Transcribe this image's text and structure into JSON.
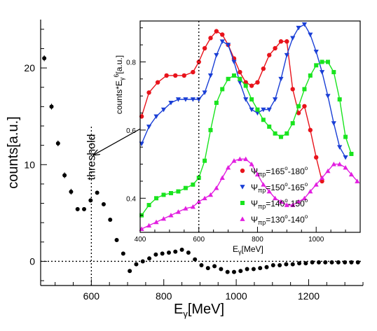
{
  "chart_data": [
    {
      "type": "scatter",
      "xlabel_main": "E",
      "xlabel_sub": "γ",
      "xlabel_unit": "[MeV]",
      "ylabel": "counts[a.u.]",
      "xlim": [
        460,
        1350
      ],
      "ylim": [
        -2.5,
        25
      ],
      "xticks": [
        600,
        800,
        1000,
        1200
      ],
      "yticks": [
        0,
        10,
        20
      ],
      "x_tick_labels": [
        "600",
        "800",
        "1000",
        "1200"
      ],
      "y_tick_labels": [
        "0",
        "10",
        "20"
      ],
      "threshold_x": 600,
      "threshold_label": "threshold",
      "zero_line": 0,
      "marker_color": "#000000",
      "points": [
        {
          "x": 470,
          "y": 21.0,
          "err": 0.3
        },
        {
          "x": 490,
          "y": 16.0,
          "err": 0.3
        },
        {
          "x": 508,
          "y": 12.2,
          "err": 0.3
        },
        {
          "x": 526,
          "y": 8.9,
          "err": 0.3
        },
        {
          "x": 544,
          "y": 7.2,
          "err": 0.3
        },
        {
          "x": 562,
          "y": 5.4,
          "err": 0.2
        },
        {
          "x": 580,
          "y": 5.4,
          "err": 0.2
        },
        {
          "x": 598,
          "y": 6.3,
          "err": 0.2
        },
        {
          "x": 616,
          "y": 7.1,
          "err": 0.2
        },
        {
          "x": 634,
          "y": 5.9,
          "err": 0.2
        },
        {
          "x": 652,
          "y": 4.3,
          "err": 0.2
        },
        {
          "x": 670,
          "y": 2.2,
          "err": 0.2
        },
        {
          "x": 688,
          "y": 0.8,
          "err": 0.15
        },
        {
          "x": 706,
          "y": -1.0,
          "err": 0.15
        },
        {
          "x": 724,
          "y": -0.3,
          "err": 0.15
        },
        {
          "x": 742,
          "y": 0.0,
          "err": 0.15
        },
        {
          "x": 760,
          "y": 0.3,
          "err": 0.15
        },
        {
          "x": 778,
          "y": 0.7,
          "err": 0.15
        },
        {
          "x": 796,
          "y": 0.8,
          "err": 0.15
        },
        {
          "x": 814,
          "y": 0.9,
          "err": 0.15
        },
        {
          "x": 832,
          "y": 1.0,
          "err": 0.15
        },
        {
          "x": 850,
          "y": 1.2,
          "err": 0.15
        },
        {
          "x": 868,
          "y": 0.9,
          "err": 0.15
        },
        {
          "x": 886,
          "y": 0.2,
          "err": 0.15
        },
        {
          "x": 904,
          "y": -0.4,
          "err": 0.15
        },
        {
          "x": 922,
          "y": -0.7,
          "err": 0.15
        },
        {
          "x": 940,
          "y": -0.5,
          "err": 0.15
        },
        {
          "x": 958,
          "y": -0.8,
          "err": 0.15
        },
        {
          "x": 976,
          "y": -1.1,
          "err": 0.15
        },
        {
          "x": 994,
          "y": -1.1,
          "err": 0.15
        },
        {
          "x": 1012,
          "y": -1.0,
          "err": 0.15
        },
        {
          "x": 1030,
          "y": -0.8,
          "err": 0.15
        },
        {
          "x": 1048,
          "y": -0.8,
          "err": 0.15
        },
        {
          "x": 1066,
          "y": -0.7,
          "err": 0.15
        },
        {
          "x": 1084,
          "y": -0.6,
          "err": 0.15
        },
        {
          "x": 1102,
          "y": -0.4,
          "err": 0.15
        },
        {
          "x": 1120,
          "y": -0.4,
          "err": 0.15
        },
        {
          "x": 1138,
          "y": -0.3,
          "err": 0.15
        },
        {
          "x": 1156,
          "y": -0.3,
          "err": 0.15
        },
        {
          "x": 1174,
          "y": -0.2,
          "err": 0.15
        },
        {
          "x": 1192,
          "y": -0.2,
          "err": 0.15
        },
        {
          "x": 1210,
          "y": -0.1,
          "err": 0.15
        },
        {
          "x": 1228,
          "y": -0.1,
          "err": 0.15
        },
        {
          "x": 1246,
          "y": -0.1,
          "err": 0.15
        },
        {
          "x": 1264,
          "y": -0.1,
          "err": 0.15
        },
        {
          "x": 1282,
          "y": -0.1,
          "err": 0.15
        },
        {
          "x": 1300,
          "y": -0.1,
          "err": 0.15
        },
        {
          "x": 1318,
          "y": -0.1,
          "err": 0.15
        },
        {
          "x": 1336,
          "y": -0.1,
          "err": 0.15
        }
      ]
    },
    {
      "type": "line",
      "xlabel_main": "E",
      "xlabel_sub": "γ",
      "xlabel_unit": "[MeV]",
      "ylabel_main": "counts*E",
      "ylabel_sub": "γ",
      "ylabel_sup": "6",
      "ylabel_unit": "[a.u.]",
      "xlim": [
        400,
        1150
      ],
      "ylim": [
        0.3,
        0.92
      ],
      "xticks": [
        400,
        600,
        800,
        1000
      ],
      "yticks": [
        0.4,
        0.6,
        0.8
      ],
      "x_tick_labels": [
        "400",
        "600",
        "800",
        "1000"
      ],
      "y_tick_labels": [
        "0.4",
        "0.6",
        "0.8"
      ],
      "threshold_x": 600,
      "legend_position": "lower-right",
      "series": [
        {
          "legend_symbol": "Ψ",
          "legend_sub": "πp",
          "legend_eq": "=",
          "legend_from": "165",
          "legend_to": "180",
          "legend_deg": "o",
          "legend_dash": "-",
          "color": "#e8131b",
          "marker": "circle",
          "x": [
            405,
            430,
            460,
            490,
            520,
            550,
            580,
            600,
            620,
            640,
            660,
            680,
            700,
            720,
            740,
            760,
            780,
            800,
            820,
            840,
            860,
            880,
            900,
            920,
            940,
            960,
            980,
            1000,
            1020
          ],
          "y": [
            0.64,
            0.71,
            0.74,
            0.76,
            0.76,
            0.76,
            0.77,
            0.8,
            0.84,
            0.87,
            0.89,
            0.88,
            0.85,
            0.81,
            0.77,
            0.74,
            0.73,
            0.74,
            0.78,
            0.82,
            0.84,
            0.86,
            0.86,
            0.72,
            0.65,
            0.67,
            0.6,
            0.52,
            0.45
          ]
        },
        {
          "legend_symbol": "Ψ",
          "legend_sub": "πp",
          "legend_eq": "=",
          "legend_from": "150",
          "legend_to": "165",
          "legend_deg": "o",
          "legend_dash": "-",
          "color": "#1a3fd6",
          "marker": "triangle-down",
          "x": [
            405,
            430,
            455,
            480,
            505,
            530,
            555,
            580,
            600,
            620,
            640,
            660,
            680,
            700,
            720,
            740,
            760,
            780,
            800,
            820,
            840,
            860,
            880,
            900,
            920,
            940,
            960,
            980,
            1000,
            1020,
            1040,
            1060,
            1080,
            1100
          ],
          "y": [
            0.56,
            0.61,
            0.64,
            0.66,
            0.68,
            0.69,
            0.69,
            0.69,
            0.69,
            0.71,
            0.76,
            0.82,
            0.86,
            0.85,
            0.8,
            0.74,
            0.69,
            0.66,
            0.65,
            0.66,
            0.66,
            0.69,
            0.75,
            0.82,
            0.87,
            0.9,
            0.91,
            0.88,
            0.83,
            0.77,
            0.7,
            0.62,
            0.55,
            0.52
          ]
        },
        {
          "legend_symbol": "Ψ",
          "legend_sub": "πp",
          "legend_eq": "=",
          "legend_from": "140",
          "legend_to": "150",
          "legend_deg": "o",
          "legend_dash": "-",
          "color": "#19e41e",
          "marker": "square",
          "x": [
            405,
            430,
            455,
            480,
            505,
            530,
            555,
            580,
            600,
            620,
            640,
            660,
            680,
            700,
            720,
            740,
            760,
            780,
            800,
            820,
            840,
            860,
            880,
            900,
            920,
            940,
            960,
            980,
            1000,
            1020,
            1040,
            1060,
            1080,
            1100,
            1120
          ],
          "y": [
            0.35,
            0.38,
            0.4,
            0.41,
            0.415,
            0.42,
            0.43,
            0.44,
            0.46,
            0.51,
            0.6,
            0.68,
            0.72,
            0.75,
            0.76,
            0.75,
            0.73,
            0.69,
            0.66,
            0.63,
            0.61,
            0.59,
            0.58,
            0.59,
            0.62,
            0.67,
            0.72,
            0.76,
            0.79,
            0.8,
            0.8,
            0.77,
            0.69,
            0.58,
            0.53
          ]
        },
        {
          "legend_symbol": "Ψ",
          "legend_sub": "πp",
          "legend_eq": "=",
          "legend_from": "130",
          "legend_to": "140",
          "legend_deg": "o",
          "legend_dash": "-",
          "color": "#e21fe0",
          "marker": "triangle-up",
          "x": [
            405,
            430,
            455,
            480,
            505,
            530,
            555,
            580,
            600,
            620,
            640,
            660,
            680,
            700,
            720,
            740,
            760,
            780,
            800,
            820,
            840,
            860,
            880,
            900,
            920,
            940,
            960,
            980,
            1000,
            1020,
            1040,
            1060,
            1080,
            1100,
            1120,
            1140
          ],
          "y": [
            0.31,
            0.32,
            0.33,
            0.34,
            0.35,
            0.36,
            0.37,
            0.375,
            0.39,
            0.4,
            0.41,
            0.43,
            0.46,
            0.49,
            0.51,
            0.515,
            0.515,
            0.5,
            0.47,
            0.44,
            0.42,
            0.4,
            0.39,
            0.38,
            0.38,
            0.39,
            0.4,
            0.42,
            0.44,
            0.46,
            0.48,
            0.5,
            0.5,
            0.49,
            0.47,
            0.45
          ]
        }
      ]
    }
  ]
}
